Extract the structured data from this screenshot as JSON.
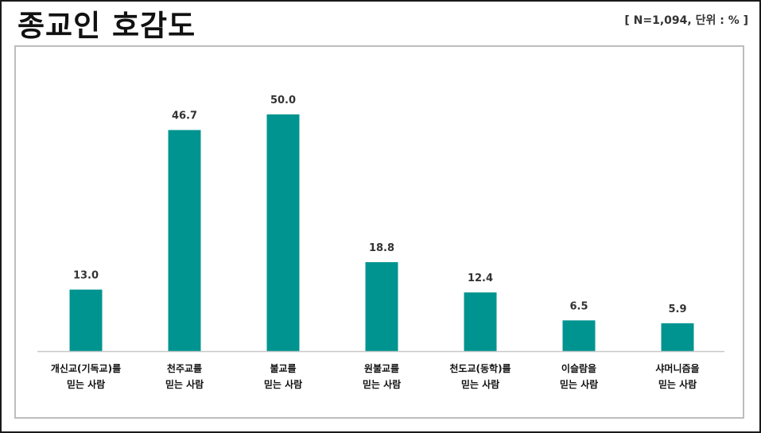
{
  "header": {
    "title": "종교인 호감도",
    "note": "[ N=1,094, 단위 : % ]"
  },
  "colors": {
    "bar": "#009490",
    "axis": "#c8c8c8"
  },
  "chart_data": {
    "type": "bar",
    "title": "종교인 호감도",
    "categories": [
      [
        "개신교(기독교)를",
        "믿는 사람"
      ],
      [
        "천주교를",
        "믿는 사람"
      ],
      [
        "불교를",
        "믿는 사람"
      ],
      [
        "원불교를",
        "믿는 사람"
      ],
      [
        "천도교(동학)를",
        "믿는 사람"
      ],
      [
        "이슬람을",
        "믿는 사람"
      ],
      [
        "샤머니즘을",
        "믿는 사람"
      ]
    ],
    "values": [
      13.0,
      46.7,
      50.0,
      18.8,
      12.4,
      6.5,
      5.9
    ],
    "value_labels": [
      "13.0",
      "46.7",
      "50.0",
      "18.8",
      "12.4",
      "6.5",
      "5.9"
    ],
    "ylim": [
      0,
      50
    ],
    "grid": false,
    "legend": "none"
  }
}
